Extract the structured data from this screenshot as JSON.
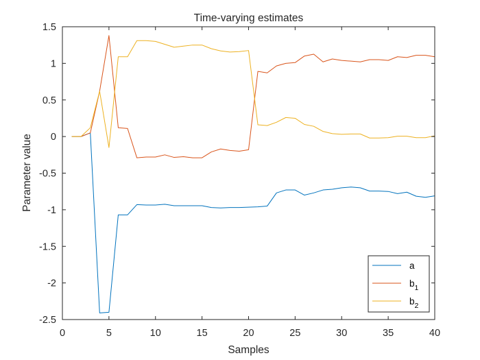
{
  "chart_data": {
    "type": "line",
    "title": "Time-varying estimates",
    "xlabel": "Samples",
    "ylabel": "Parameter value",
    "xlim": [
      0,
      40
    ],
    "ylim": [
      -2.5,
      1.5
    ],
    "xticks": [
      "0",
      "5",
      "10",
      "15",
      "20",
      "25",
      "30",
      "35",
      "40"
    ],
    "yticks": [
      "1.5",
      "1",
      "0.5",
      "0",
      "-0.5",
      "-1",
      "-1.5",
      "-2",
      "-2.5"
    ],
    "grid": false,
    "legend_position": "bottom-right",
    "x": [
      1,
      2,
      3,
      4,
      5,
      6,
      7,
      8,
      9,
      10,
      11,
      12,
      13,
      14,
      15,
      16,
      17,
      18,
      19,
      20,
      21,
      22,
      23,
      24,
      25,
      26,
      27,
      28,
      29,
      30,
      31,
      32,
      33,
      34,
      35,
      36,
      37,
      38,
      39,
      40
    ],
    "series": [
      {
        "name": "a",
        "legend_base": "a",
        "legend_sub": "",
        "color": "#0072BD",
        "values": [
          0,
          0,
          0.05,
          -2.41,
          -2.4,
          -1.07,
          -1.07,
          -0.93,
          -0.935,
          -0.935,
          -0.925,
          -0.945,
          -0.945,
          -0.945,
          -0.945,
          -0.97,
          -0.975,
          -0.97,
          -0.97,
          -0.965,
          -0.96,
          -0.95,
          -0.77,
          -0.73,
          -0.73,
          -0.8,
          -0.77,
          -0.73,
          -0.72,
          -0.7,
          -0.69,
          -0.7,
          -0.745,
          -0.745,
          -0.75,
          -0.78,
          -0.76,
          -0.815,
          -0.83,
          -0.81
        ]
      },
      {
        "name": "b1",
        "legend_base": "b",
        "legend_sub": "1",
        "color": "#D95319",
        "values": [
          0,
          0,
          0.05,
          0.62,
          1.38,
          0.12,
          0.11,
          -0.29,
          -0.28,
          -0.28,
          -0.25,
          -0.285,
          -0.275,
          -0.29,
          -0.29,
          -0.21,
          -0.17,
          -0.19,
          -0.2,
          -0.18,
          0.89,
          0.87,
          0.965,
          1.0,
          1.01,
          1.1,
          1.125,
          1.02,
          1.06,
          1.04,
          1.03,
          1.02,
          1.05,
          1.05,
          1.04,
          1.09,
          1.08,
          1.11,
          1.11,
          1.09
        ]
      },
      {
        "name": "b2",
        "legend_base": "b",
        "legend_sub": "2",
        "color": "#EDB120",
        "values": [
          0,
          0,
          0.12,
          0.62,
          -0.15,
          1.09,
          1.09,
          1.31,
          1.31,
          1.3,
          1.26,
          1.22,
          1.235,
          1.25,
          1.25,
          1.2,
          1.17,
          1.155,
          1.16,
          1.175,
          0.16,
          0.15,
          0.195,
          0.26,
          0.25,
          0.165,
          0.14,
          0.07,
          0.04,
          0.03,
          0.035,
          0.035,
          -0.02,
          -0.02,
          -0.015,
          0.005,
          0.005,
          -0.015,
          -0.015,
          0.01
        ]
      }
    ]
  }
}
